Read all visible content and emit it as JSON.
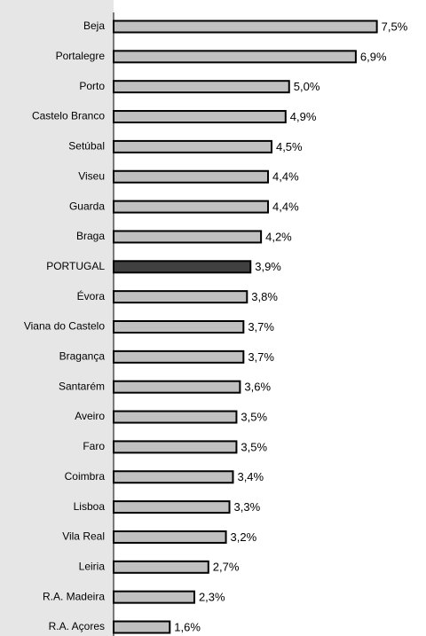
{
  "chart_data": {
    "type": "barh",
    "categories": [
      "Beja",
      "Portalegre",
      "Porto",
      "Castelo Branco",
      "Setúbal",
      "Viseu",
      "Guarda",
      "Braga",
      "PORTUGAL",
      "Évora",
      "Viana do Castelo",
      "Bragança",
      "Santarém",
      "Aveiro",
      "Faro",
      "Coimbra",
      "Lisboa",
      "Vila Real",
      "Leiria",
      "R.A. Madeira",
      "R.A. Açores"
    ],
    "values": [
      7.5,
      6.9,
      5.0,
      4.9,
      4.5,
      4.4,
      4.4,
      4.2,
      3.9,
      3.8,
      3.7,
      3.7,
      3.6,
      3.5,
      3.5,
      3.4,
      3.3,
      3.2,
      2.7,
      2.3,
      1.6
    ],
    "value_labels": [
      "7,5%",
      "6,9%",
      "5,0%",
      "4,9%",
      "4,5%",
      "4,4%",
      "4,4%",
      "4,2%",
      "3,9%",
      "3,8%",
      "3,7%",
      "3,7%",
      "3,6%",
      "3,5%",
      "3,5%",
      "3,4%",
      "3,3%",
      "3,2%",
      "2,7%",
      "2,3%",
      "1,6%"
    ],
    "colors": [
      "#c0c0c0",
      "#c0c0c0",
      "#c0c0c0",
      "#c0c0c0",
      "#c0c0c0",
      "#c0c0c0",
      "#c0c0c0",
      "#c0c0c0",
      "#404040",
      "#c0c0c0",
      "#c0c0c0",
      "#c0c0c0",
      "#c0c0c0",
      "#c0c0c0",
      "#c0c0c0",
      "#c0c0c0",
      "#c0c0c0",
      "#c0c0c0",
      "#c0c0c0",
      "#c0c0c0",
      "#c0c0c0"
    ],
    "xlim": [
      0,
      8.9
    ]
  }
}
